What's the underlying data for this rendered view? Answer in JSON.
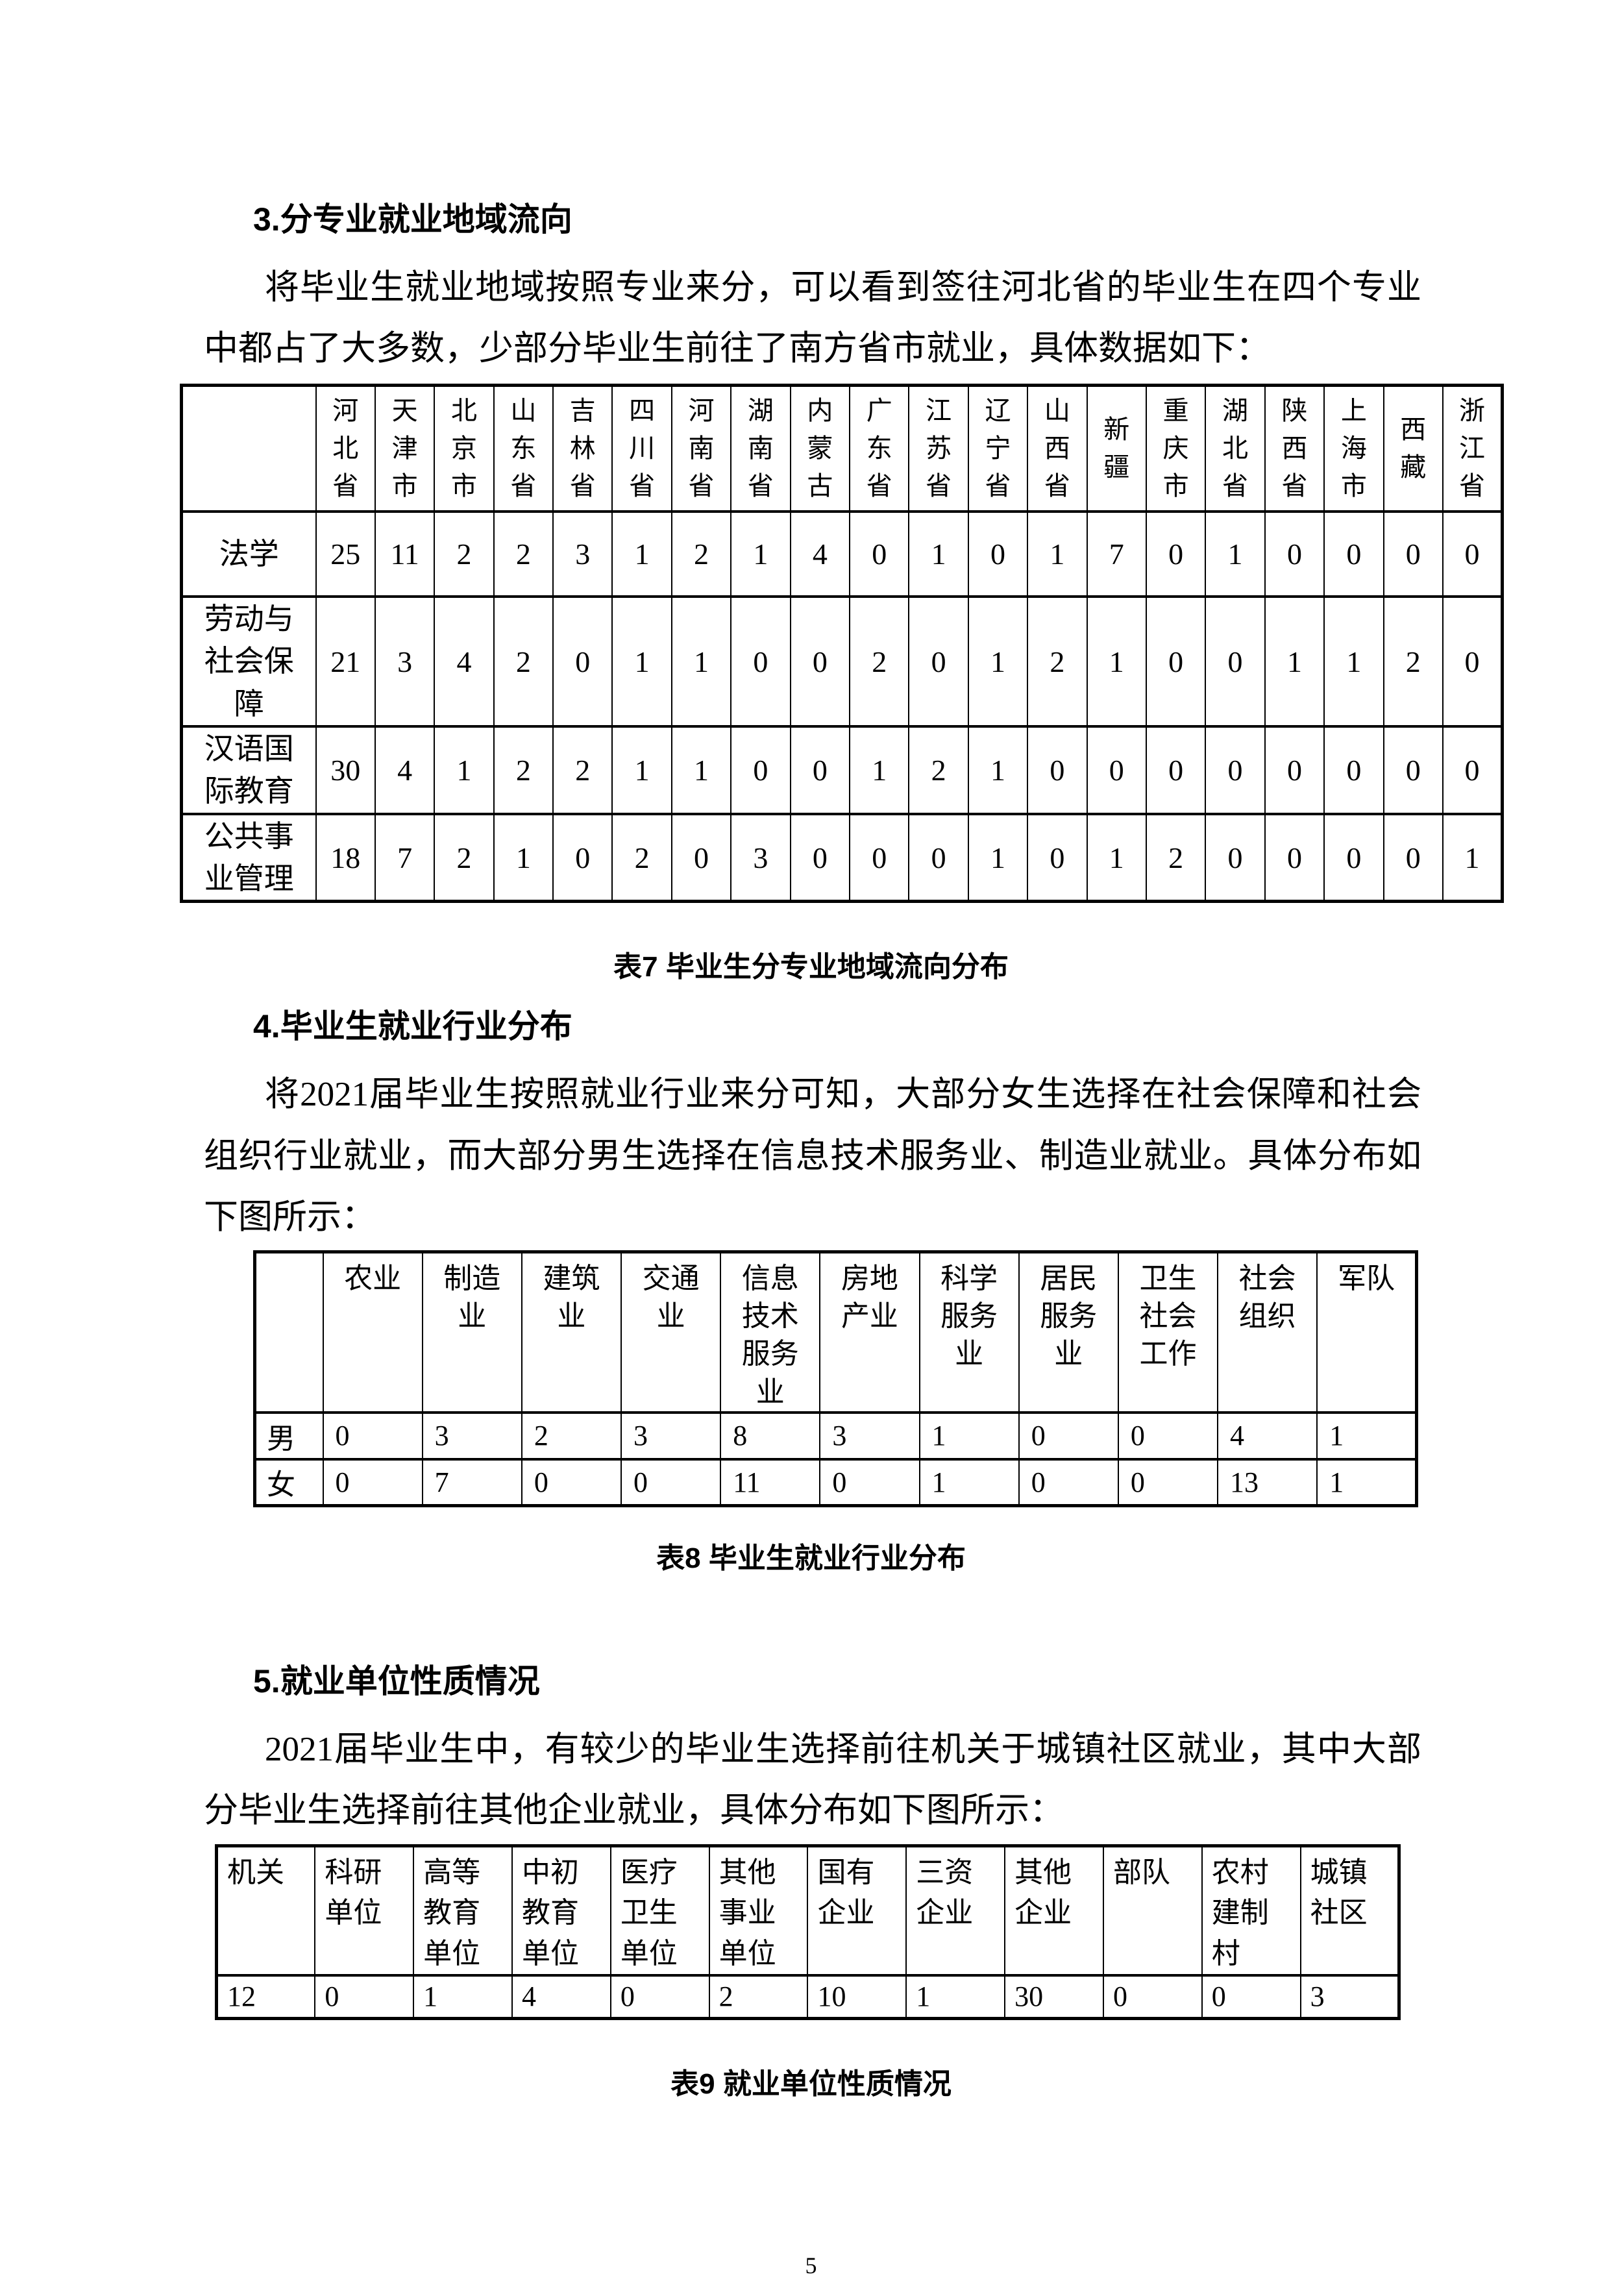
{
  "page_number": "5",
  "section3": {
    "heading": "3.分专业就业地域流向",
    "paragraph": "将毕业生就业地域按照专业来分，可以看到签往河北省的毕业生在四个专业中都占了大多数，少部分毕业生前往了南方省市就业，具体数据如下：",
    "table": {
      "caption": "表7 毕业生分专业地域流向分布",
      "header": [
        "河北省",
        "天津市",
        "北京市",
        "山东省",
        "吉林省",
        "四川省",
        "河南省",
        "湖南省",
        "内蒙古",
        "广东省",
        "江苏省",
        "辽宁省",
        "山西省",
        "新疆",
        "重庆市",
        "湖北省",
        "陕西省",
        "上海市",
        "西藏",
        "浙江省"
      ],
      "rows": [
        {
          "label": "法学",
          "values": [
            25,
            11,
            2,
            2,
            3,
            1,
            2,
            1,
            4,
            0,
            1,
            0,
            1,
            7,
            0,
            1,
            0,
            0,
            0,
            0
          ]
        },
        {
          "label": "劳动与社会保障",
          "values": [
            21,
            3,
            4,
            2,
            0,
            1,
            1,
            0,
            0,
            2,
            0,
            1,
            2,
            1,
            0,
            0,
            1,
            1,
            2,
            0
          ]
        },
        {
          "label": "汉语国际教育",
          "values": [
            30,
            4,
            1,
            2,
            2,
            1,
            1,
            0,
            0,
            1,
            2,
            1,
            0,
            0,
            0,
            0,
            0,
            0,
            0,
            0
          ]
        },
        {
          "label": "公共事业管理",
          "values": [
            18,
            7,
            2,
            1,
            0,
            2,
            0,
            3,
            0,
            0,
            0,
            1,
            0,
            1,
            2,
            0,
            0,
            0,
            0,
            1
          ]
        }
      ]
    }
  },
  "section4": {
    "heading": "4.毕业生就业行业分布",
    "paragraph": "将2021届毕业生按照就业行业来分可知，大部分女生选择在社会保障和社会组织行业就业，而大部分男生选择在信息技术服务业、制造业就业。具体分布如下图所示：",
    "table": {
      "caption": "表8 毕业生就业行业分布",
      "header": [
        "农业",
        "制造业",
        "建筑业",
        "交通业",
        "信息技术服务业",
        "房地产业",
        "科学服务业",
        "居民服务业",
        "卫生社会工作",
        "社会组织",
        "军队"
      ],
      "rows": [
        {
          "label": "男",
          "values": [
            0,
            3,
            2,
            3,
            8,
            3,
            1,
            0,
            0,
            4,
            1
          ]
        },
        {
          "label": "女",
          "values": [
            0,
            7,
            0,
            0,
            11,
            0,
            1,
            0,
            0,
            13,
            1
          ]
        }
      ]
    }
  },
  "section5": {
    "heading": "5.就业单位性质情况",
    "paragraph": "2021届毕业生中，有较少的毕业生选择前往机关于城镇社区就业，其中大部分毕业生选择前往其他企业就业，具体分布如下图所示：",
    "table": {
      "caption": "表9 就业单位性质情况",
      "header": [
        "机关",
        "科研单位",
        "高等教育单位",
        "中初教育单位",
        "医疗卫生单位",
        "其他事业单位",
        "国有企业",
        "三资企业",
        "其他企业",
        "部队",
        "农村建制村",
        "城镇社区"
      ],
      "rows": [
        {
          "values": [
            12,
            0,
            1,
            4,
            0,
            2,
            10,
            1,
            30,
            0,
            0,
            3
          ]
        }
      ]
    }
  }
}
